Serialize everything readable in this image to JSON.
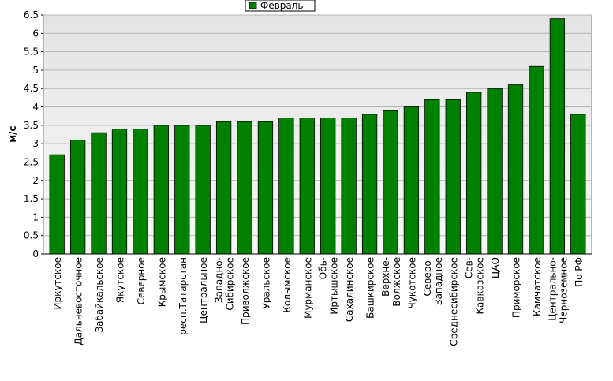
{
  "chart_data": {
    "type": "bar",
    "y_label": "м/с",
    "categories": [
      "Иркутское",
      "Дальневосточное",
      "Забайкальское",
      "Якутское",
      "Северное",
      "Крымское",
      "респ.Татарстан",
      "Центральное",
      "Западно-\nСибирское",
      "Приволжское",
      "Уральское",
      "Колымское",
      "Мурманское",
      "Обь-\nИртышское",
      "Сахалинское",
      "Башкирское",
      "Верхне-\nВолжское",
      "Чукотское",
      "Северо-\nЗападное",
      "Среднесибирское",
      "Сев-\nКавказское",
      "ЦАО",
      "Приморское",
      "Камчатское",
      "Центрально-\nЧерноземное",
      "По РФ"
    ],
    "series": [
      {
        "name": "Февраль",
        "color": "#008000",
        "values": [
          2.7,
          3.1,
          3.3,
          3.4,
          3.4,
          3.5,
          3.5,
          3.5,
          3.6,
          3.6,
          3.6,
          3.7,
          3.7,
          3.7,
          3.7,
          3.8,
          3.9,
          4.0,
          4.2,
          4.2,
          4.4,
          4.5,
          4.6,
          5.1,
          6.4,
          3.8
        ]
      }
    ],
    "ylim": [
      0,
      6.5
    ],
    "yticks": [
      0,
      0.5,
      1,
      1.5,
      2,
      2.5,
      3,
      3.5,
      4,
      4.5,
      5,
      5.5,
      6,
      6.5
    ],
    "grid": true,
    "legend": "top"
  }
}
